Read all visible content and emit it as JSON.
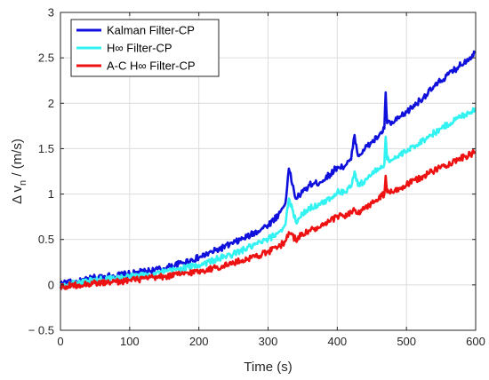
{
  "chart_data": {
    "type": "line",
    "xlabel": "Time (s)",
    "ylabel": {
      "prefix": "Δ v",
      "subscript": "n",
      "suffix": " / (m/s)"
    },
    "xlim": [
      0,
      600
    ],
    "ylim": [
      -0.5,
      3
    ],
    "xticks": [
      0,
      100,
      200,
      300,
      400,
      500,
      600
    ],
    "yticks": [
      -0.5,
      0,
      0.5,
      1,
      1.5,
      2,
      2.5,
      3
    ],
    "xtick_labels": [
      "0",
      "100",
      "200",
      "300",
      "400",
      "500",
      "600"
    ],
    "ytick_labels": [
      "− 0.5",
      "0",
      "0.5",
      "1",
      "1.5",
      "2",
      "2.5",
      "3"
    ],
    "grid": true,
    "legend_position": "top-left",
    "series": [
      {
        "name": "Kalman Filter-CP",
        "color": "#1010dd",
        "x": [
          0,
          25,
          50,
          75,
          100,
          125,
          150,
          175,
          200,
          225,
          250,
          275,
          300,
          315,
          325,
          330,
          340,
          350,
          360,
          375,
          390,
          400,
          410,
          420,
          425,
          430,
          440,
          450,
          460,
          468,
          470,
          472,
          480,
          500,
          525,
          550,
          575,
          600
        ],
        "y": [
          0.02,
          0.03,
          0.08,
          0.1,
          0.12,
          0.15,
          0.18,
          0.24,
          0.3,
          0.38,
          0.46,
          0.55,
          0.66,
          0.77,
          0.9,
          1.28,
          0.95,
          1.02,
          1.1,
          1.13,
          1.22,
          1.3,
          1.3,
          1.38,
          1.65,
          1.42,
          1.5,
          1.57,
          1.64,
          1.72,
          2.12,
          1.78,
          1.78,
          1.9,
          2.07,
          2.25,
          2.4,
          2.56
        ]
      },
      {
        "name": "H∞ Filter-CP",
        "color": "#33f2f2",
        "x": [
          0,
          25,
          50,
          75,
          100,
          125,
          150,
          175,
          200,
          225,
          250,
          275,
          300,
          315,
          325,
          330,
          340,
          350,
          360,
          375,
          390,
          400,
          410,
          420,
          425,
          430,
          440,
          450,
          460,
          468,
          470,
          472,
          480,
          500,
          525,
          550,
          575,
          600
        ],
        "y": [
          0.0,
          0.02,
          0.05,
          0.07,
          0.09,
          0.11,
          0.14,
          0.18,
          0.22,
          0.28,
          0.34,
          0.42,
          0.5,
          0.58,
          0.66,
          0.95,
          0.7,
          0.78,
          0.85,
          0.88,
          0.96,
          1.02,
          1.03,
          1.08,
          1.25,
          1.09,
          1.15,
          1.22,
          1.28,
          1.33,
          1.63,
          1.38,
          1.38,
          1.47,
          1.6,
          1.72,
          1.84,
          1.94
        ]
      },
      {
        "name": "A-C H∞ Filter-CP",
        "color": "#ee1111",
        "x": [
          0,
          25,
          50,
          75,
          100,
          125,
          150,
          175,
          200,
          225,
          250,
          275,
          300,
          315,
          325,
          330,
          340,
          350,
          360,
          375,
          390,
          400,
          410,
          420,
          425,
          430,
          440,
          450,
          460,
          468,
          470,
          472,
          480,
          500,
          525,
          550,
          575,
          600
        ],
        "y": [
          -0.02,
          0.0,
          0.02,
          0.03,
          0.05,
          0.07,
          0.09,
          0.12,
          0.15,
          0.19,
          0.24,
          0.3,
          0.36,
          0.42,
          0.48,
          0.58,
          0.5,
          0.56,
          0.6,
          0.63,
          0.7,
          0.76,
          0.76,
          0.8,
          0.82,
          0.78,
          0.84,
          0.9,
          0.95,
          1.0,
          1.2,
          1.02,
          1.02,
          1.1,
          1.2,
          1.3,
          1.38,
          1.46
        ]
      }
    ]
  }
}
